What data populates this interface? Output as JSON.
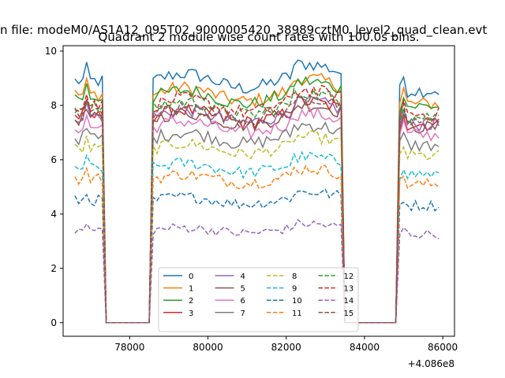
{
  "chart_data": {
    "type": "line",
    "suptitle": "n file: modeM0/AS1A12_095T02_9000005420_38989cztM0_level2_quad_clean.evt",
    "title": "Quadrant 2 module wise count rates with 100.0s bins.",
    "xlabel": "",
    "ylabel": "",
    "x_offset_label": "+4.086e8",
    "xlim": [
      76300,
      86300
    ],
    "ylim": [
      -0.5,
      10.2
    ],
    "xticks": [
      {
        "value": 78000,
        "label": "78000"
      },
      {
        "value": 80000,
        "label": "80000"
      },
      {
        "value": 82000,
        "label": "82000"
      },
      {
        "value": 84000,
        "label": "84000"
      },
      {
        "value": 86000,
        "label": "86000"
      }
    ],
    "yticks": [
      {
        "value": 0,
        "label": "0"
      },
      {
        "value": 2,
        "label": "2"
      },
      {
        "value": 4,
        "label": "4"
      },
      {
        "value": 6,
        "label": "6"
      },
      {
        "value": 8,
        "label": "8"
      },
      {
        "value": 10,
        "label": "10"
      }
    ],
    "segments": [
      {
        "start": 76600,
        "count": 8,
        "drop_to": 77400
      },
      {
        "start": 78600,
        "count": 49
      },
      {
        "start": 84900,
        "count": 11
      }
    ],
    "zero_gaps": [
      {
        "from": 77400,
        "to": 78500
      },
      {
        "from": 83500,
        "to": 84800
      }
    ],
    "grid": false,
    "legend_position": "lower-center",
    "legend_columns": 4,
    "series": [
      {
        "name": "0",
        "color": "#1f77b4",
        "dash": "solid",
        "level": 8.9,
        "noise": 0.25
      },
      {
        "name": "1",
        "color": "#ff7f0e",
        "dash": "solid",
        "level": 8.4,
        "noise": 0.25
      },
      {
        "name": "2",
        "color": "#2ca02c",
        "dash": "solid",
        "level": 8.3,
        "noise": 0.25
      },
      {
        "name": "3",
        "color": "#d62728",
        "dash": "solid",
        "level": 7.6,
        "noise": 0.25
      },
      {
        "name": "4",
        "color": "#9467bd",
        "dash": "solid",
        "level": 7.6,
        "noise": 0.25
      },
      {
        "name": "5",
        "color": "#8c564b",
        "dash": "solid",
        "level": 7.5,
        "noise": 0.25
      },
      {
        "name": "6",
        "color": "#e377c2",
        "dash": "solid",
        "level": 7.2,
        "noise": 0.25
      },
      {
        "name": "7",
        "color": "#7f7f7f",
        "dash": "solid",
        "level": 6.8,
        "noise": 0.25
      },
      {
        "name": "8",
        "color": "#bcbd22",
        "dash": "dashed",
        "level": 6.4,
        "noise": 0.22
      },
      {
        "name": "9",
        "color": "#17becf",
        "dash": "dashed",
        "level": 5.7,
        "noise": 0.22
      },
      {
        "name": "10",
        "color": "#1f77b4",
        "dash": "dashed",
        "level": 4.5,
        "noise": 0.2
      },
      {
        "name": "11",
        "color": "#ff7f0e",
        "dash": "dashed",
        "level": 5.3,
        "noise": 0.22
      },
      {
        "name": "12",
        "color": "#2ca02c",
        "dash": "dashed",
        "level": 7.9,
        "noise": 0.25
      },
      {
        "name": "13",
        "color": "#d62728",
        "dash": "dashed",
        "level": 8.0,
        "noise": 0.25
      },
      {
        "name": "14",
        "color": "#9467bd",
        "dash": "dashed",
        "level": 3.4,
        "noise": 0.18
      },
      {
        "name": "15",
        "color": "#8c564b",
        "dash": "dashed",
        "level": 7.7,
        "noise": 0.25
      }
    ]
  }
}
